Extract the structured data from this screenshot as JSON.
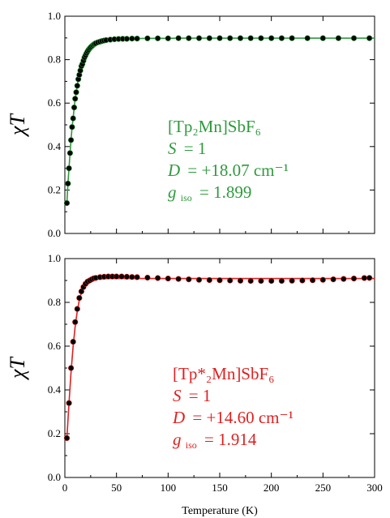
{
  "chart_data": [
    {
      "type": "scatter",
      "panel": "top",
      "title": "",
      "xlabel": "",
      "ylabel": "χT",
      "xlim": [
        0,
        300
      ],
      "ylim": [
        0.0,
        1.0
      ],
      "xticks": [
        "0",
        "50",
        "100",
        "150",
        "200",
        "250",
        "300"
      ],
      "yticks": [
        "0.0",
        "0.2",
        "0.4",
        "0.6",
        "0.8",
        "1.0"
      ],
      "xtick_labels_shown": false,
      "colors": {
        "data": "#000000",
        "fit": "#2e9a3c",
        "annotation": "#2e9a3c"
      },
      "series": [
        {
          "kind": "points",
          "x": [
            2,
            3,
            4,
            5,
            6,
            7,
            8,
            9,
            10,
            11,
            12,
            13,
            14,
            15,
            16,
            17,
            18,
            19,
            20,
            21,
            22,
            23,
            24,
            25,
            26,
            27,
            28,
            29,
            30,
            32,
            34,
            36,
            38,
            40,
            44,
            48,
            52,
            56,
            60,
            65,
            70,
            80,
            90,
            100,
            110,
            120,
            130,
            140,
            150,
            160,
            170,
            180,
            190,
            200,
            210,
            220,
            235,
            250,
            265,
            280,
            295
          ],
          "y": [
            0.14,
            0.23,
            0.3,
            0.37,
            0.43,
            0.49,
            0.53,
            0.58,
            0.62,
            0.65,
            0.68,
            0.71,
            0.73,
            0.75,
            0.77,
            0.78,
            0.795,
            0.81,
            0.82,
            0.83,
            0.838,
            0.846,
            0.852,
            0.857,
            0.862,
            0.866,
            0.87,
            0.873,
            0.876,
            0.88,
            0.883,
            0.886,
            0.888,
            0.89,
            0.892,
            0.894,
            0.895,
            0.896,
            0.896,
            0.897,
            0.897,
            0.898,
            0.898,
            0.898,
            0.899,
            0.899,
            0.899,
            0.899,
            0.899,
            0.899,
            0.899,
            0.899,
            0.899,
            0.899,
            0.899,
            0.899,
            0.899,
            0.899,
            0.899,
            0.899,
            0.899
          ]
        },
        {
          "kind": "fit",
          "x": [
            2,
            3,
            4,
            5,
            6,
            7,
            8,
            9,
            10,
            11,
            12,
            13,
            14,
            15,
            16,
            17,
            18,
            19,
            20,
            21,
            22,
            23,
            24,
            25,
            26,
            27,
            28,
            29,
            30,
            32,
            34,
            36,
            38,
            40,
            44,
            48,
            52,
            56,
            60,
            65,
            70,
            80,
            90,
            100,
            110,
            120,
            130,
            140,
            150,
            160,
            170,
            180,
            190,
            200,
            210,
            220,
            235,
            250,
            265,
            280,
            295,
            300
          ],
          "y": [
            0.14,
            0.23,
            0.3,
            0.37,
            0.43,
            0.49,
            0.53,
            0.58,
            0.62,
            0.65,
            0.68,
            0.71,
            0.73,
            0.75,
            0.77,
            0.78,
            0.795,
            0.81,
            0.82,
            0.83,
            0.838,
            0.846,
            0.852,
            0.857,
            0.862,
            0.866,
            0.87,
            0.873,
            0.876,
            0.88,
            0.883,
            0.886,
            0.888,
            0.89,
            0.892,
            0.894,
            0.895,
            0.896,
            0.896,
            0.897,
            0.897,
            0.898,
            0.898,
            0.898,
            0.899,
            0.899,
            0.899,
            0.899,
            0.899,
            0.899,
            0.899,
            0.899,
            0.899,
            0.899,
            0.899,
            0.899,
            0.899,
            0.899,
            0.899,
            0.899,
            0.899,
            0.899
          ]
        }
      ],
      "annotation": {
        "compound": "[Tp₂Mn]SbF₆",
        "S_label": "S",
        "S_value": "= 1",
        "D_label": "D",
        "D_value": "= +18.07 cm⁻¹",
        "g_label": "g",
        "g_sub": "iso",
        "g_value": "= 1.899"
      }
    },
    {
      "type": "scatter",
      "panel": "bottom",
      "title": "",
      "xlabel": "Temperature (K)",
      "ylabel": "χT",
      "xlim": [
        0,
        300
      ],
      "ylim": [
        0.0,
        1.0
      ],
      "xticks": [
        "0",
        "50",
        "100",
        "150",
        "200",
        "250",
        "300"
      ],
      "yticks": [
        "0.0",
        "0.2",
        "0.4",
        "0.6",
        "0.8",
        "1.0"
      ],
      "xtick_labels_shown": true,
      "colors": {
        "data": "#000000",
        "fit": "#e02020",
        "annotation": "#e02020"
      },
      "series": [
        {
          "kind": "points",
          "x": [
            2,
            4,
            6,
            8,
            10,
            12,
            14,
            16,
            18,
            20,
            22,
            24,
            26,
            28,
            30,
            34,
            38,
            42,
            46,
            50,
            55,
            60,
            65,
            70,
            80,
            90,
            100,
            110,
            120,
            130,
            140,
            150,
            160,
            170,
            180,
            190,
            200,
            210,
            220,
            230,
            240,
            250,
            260,
            270,
            280,
            290,
            295
          ],
          "y": [
            0.18,
            0.34,
            0.5,
            0.62,
            0.71,
            0.77,
            0.82,
            0.85,
            0.87,
            0.885,
            0.895,
            0.9,
            0.905,
            0.91,
            0.912,
            0.915,
            0.917,
            0.918,
            0.918,
            0.918,
            0.918,
            0.917,
            0.916,
            0.915,
            0.913,
            0.911,
            0.909,
            0.907,
            0.905,
            0.903,
            0.902,
            0.901,
            0.9,
            0.899,
            0.898,
            0.898,
            0.898,
            0.898,
            0.899,
            0.9,
            0.901,
            0.903,
            0.905,
            0.907,
            0.909,
            0.911,
            0.912
          ]
        },
        {
          "kind": "fit",
          "x": [
            2,
            4,
            6,
            8,
            10,
            12,
            14,
            16,
            18,
            20,
            22,
            24,
            26,
            28,
            30,
            34,
            38,
            42,
            46,
            50,
            60,
            70,
            80,
            100,
            120,
            150,
            200,
            250,
            300
          ],
          "y": [
            0.18,
            0.34,
            0.48,
            0.6,
            0.69,
            0.76,
            0.81,
            0.845,
            0.865,
            0.88,
            0.89,
            0.895,
            0.9,
            0.903,
            0.905,
            0.907,
            0.908,
            0.909,
            0.909,
            0.909,
            0.909,
            0.909,
            0.909,
            0.909,
            0.909,
            0.909,
            0.909,
            0.909,
            0.909
          ]
        }
      ],
      "annotation": {
        "compound": "[Tp*₂Mn]SbF₆",
        "S_label": "S",
        "S_value": "= 1",
        "D_label": "D",
        "D_value": "= +14.60 cm⁻¹",
        "g_label": "g",
        "g_sub": "iso",
        "g_value": "= 1.914"
      }
    }
  ]
}
